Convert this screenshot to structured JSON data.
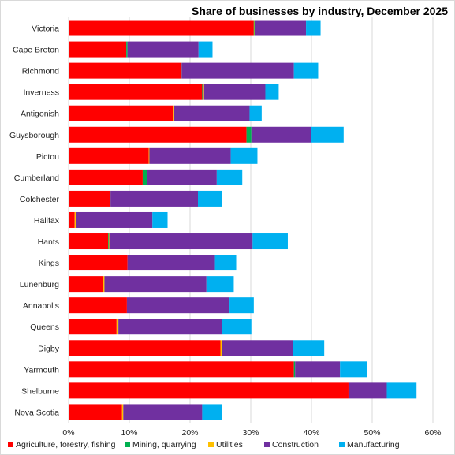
{
  "chart_data": {
    "type": "bar",
    "orientation": "horizontal",
    "stacked": true,
    "title": "Share of businesses  by industry, December 2025",
    "categories": [
      "Victoria",
      "Cape Breton",
      "Richmond",
      "Inverness",
      "Antigonish",
      "Guysborough",
      "Pictou",
      "Cumberland",
      "Colchester",
      "Halifax",
      "Hants",
      "Kings",
      "Lunenburg",
      "Annapolis",
      "Queens",
      "Digby",
      "Yarmouth",
      "Shelburne",
      "Nova Scotia"
    ],
    "series": [
      {
        "name": "Agriculture, forestry, fishing",
        "color": "#ff0000",
        "values": [
          30.5,
          9.5,
          18.5,
          22.0,
          17.3,
          29.3,
          13.2,
          12.2,
          6.8,
          1.0,
          6.5,
          9.7,
          5.6,
          9.6,
          7.9,
          25.0,
          37.1,
          46.1,
          8.8
        ]
      },
      {
        "name": "Mining, quarrying",
        "color": "#00b050",
        "values": [
          0.1,
          0.2,
          0.0,
          0.1,
          0.0,
          0.8,
          0.0,
          0.7,
          0.0,
          0.0,
          0.1,
          0.0,
          0.0,
          0.0,
          0.0,
          0.0,
          0.2,
          0.0,
          0.0
        ]
      },
      {
        "name": "Utilities",
        "color": "#ffc000",
        "values": [
          0.1,
          0.0,
          0.1,
          0.2,
          0.1,
          0.0,
          0.1,
          0.0,
          0.1,
          0.2,
          0.1,
          0.0,
          0.3,
          0.0,
          0.3,
          0.2,
          0.0,
          0.0,
          0.2
        ]
      },
      {
        "name": "Construction",
        "color": "#7030a0",
        "values": [
          8.4,
          11.7,
          18.5,
          10.1,
          12.4,
          9.8,
          13.4,
          11.5,
          14.4,
          12.6,
          23.6,
          14.4,
          16.8,
          16.9,
          17.1,
          11.7,
          7.4,
          6.3,
          13.0
        ]
      },
      {
        "name": "Manufacturing",
        "color": "#00b0f0",
        "values": [
          2.4,
          2.3,
          4.0,
          2.2,
          2.0,
          5.4,
          4.4,
          4.2,
          4.0,
          2.5,
          5.8,
          3.5,
          4.5,
          4.0,
          4.8,
          5.2,
          4.4,
          4.9,
          3.3
        ]
      }
    ],
    "xlim": [
      0,
      60
    ],
    "x_ticks": [
      "0%",
      "10%",
      "20%",
      "30%",
      "40%",
      "50%",
      "60%"
    ],
    "gridlines": true,
    "legend_position": "bottom"
  }
}
